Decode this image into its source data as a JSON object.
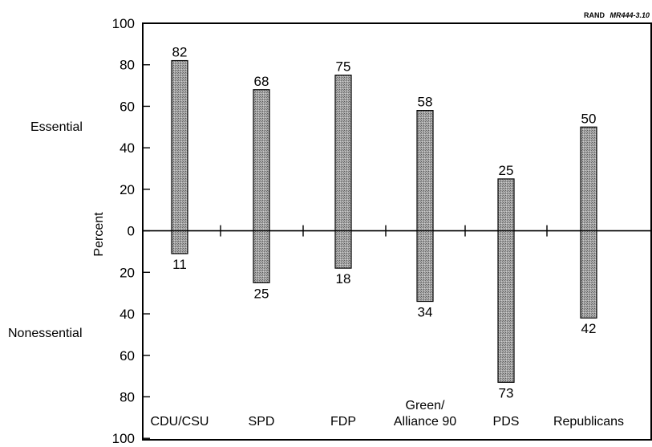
{
  "credit": {
    "org": "RAND",
    "code": "MR444-3.10"
  },
  "chart_data": {
    "type": "bar",
    "ylabel": "Percent",
    "upper_label": "Essential",
    "lower_label": "Nonessential",
    "ylim": [
      -100,
      100
    ],
    "y_tick_labels": [
      "100",
      "80",
      "60",
      "40",
      "20",
      "0",
      "20",
      "40",
      "60",
      "80",
      "100"
    ],
    "y_tick_values": [
      100,
      80,
      60,
      40,
      20,
      0,
      -20,
      -40,
      -60,
      -80,
      -100
    ],
    "categories": [
      "CDU/CSU",
      "SPD",
      "FDP",
      "Green/\nAlliance 90",
      "PDS",
      "Republicans"
    ],
    "series": [
      {
        "name": "Essential",
        "values": [
          82,
          68,
          75,
          58,
          25,
          50
        ]
      },
      {
        "name": "Nonessential",
        "values": [
          11,
          25,
          18,
          34,
          73,
          42
        ]
      }
    ],
    "bar_fill": "#8c8c8c",
    "grid": false
  }
}
